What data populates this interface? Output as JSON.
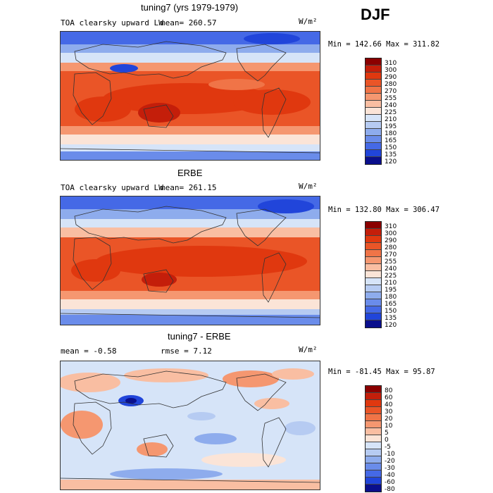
{
  "season": "DJF",
  "panels": [
    {
      "title": "tuning7 (yrs 1979-1979)",
      "field": "TOA clearsky upward LW",
      "mean_label": "mean= 260.57",
      "units": "W/m²",
      "minmax": "Min = 142.66 Max = 311.82",
      "levels": [
        "310",
        "300",
        "290",
        "280",
        "270",
        "255",
        "240",
        "225",
        "210",
        "195",
        "180",
        "165",
        "150",
        "135",
        "120"
      ]
    },
    {
      "title": "ERBE",
      "field": "TOA clearsky upward LW",
      "mean_label": "mean= 261.15",
      "units": "W/m²",
      "minmax": "Min = 132.80 Max = 306.47",
      "levels": [
        "310",
        "300",
        "290",
        "280",
        "270",
        "255",
        "240",
        "225",
        "210",
        "195",
        "180",
        "165",
        "150",
        "135",
        "120"
      ]
    },
    {
      "title": "tuning7 - ERBE",
      "mean_label": "mean =  -0.58",
      "rmse_label": "rmse =   7.12",
      "units": "W/m²",
      "minmax": "Min = -81.45 Max =  95.87",
      "levels": [
        "80",
        "60",
        "40",
        "30",
        "20",
        "10",
        "5",
        "0",
        "-5",
        "-10",
        "-20",
        "-30",
        "-40",
        "-60",
        "-80"
      ]
    }
  ],
  "colors": {
    "abs_scale": [
      "#8b0000",
      "#c41e0a",
      "#e0380f",
      "#ea5527",
      "#f07447",
      "#f59770",
      "#f9bea2",
      "#fbe4d7",
      "#d6e4f8",
      "#b6cbf2",
      "#8eaced",
      "#6a8cea",
      "#4569e6",
      "#2145da",
      "#0a0f8c"
    ],
    "diff_scale": [
      "#8b0000",
      "#c41e0a",
      "#e0380f",
      "#ea5527",
      "#f07447",
      "#f59770",
      "#f9bea2",
      "#fbe4d7",
      "#d6e4f8",
      "#b6cbf2",
      "#8eaced",
      "#6a8cea",
      "#4569e6",
      "#2145da",
      "#0a0f8c"
    ],
    "land": "#333333"
  }
}
